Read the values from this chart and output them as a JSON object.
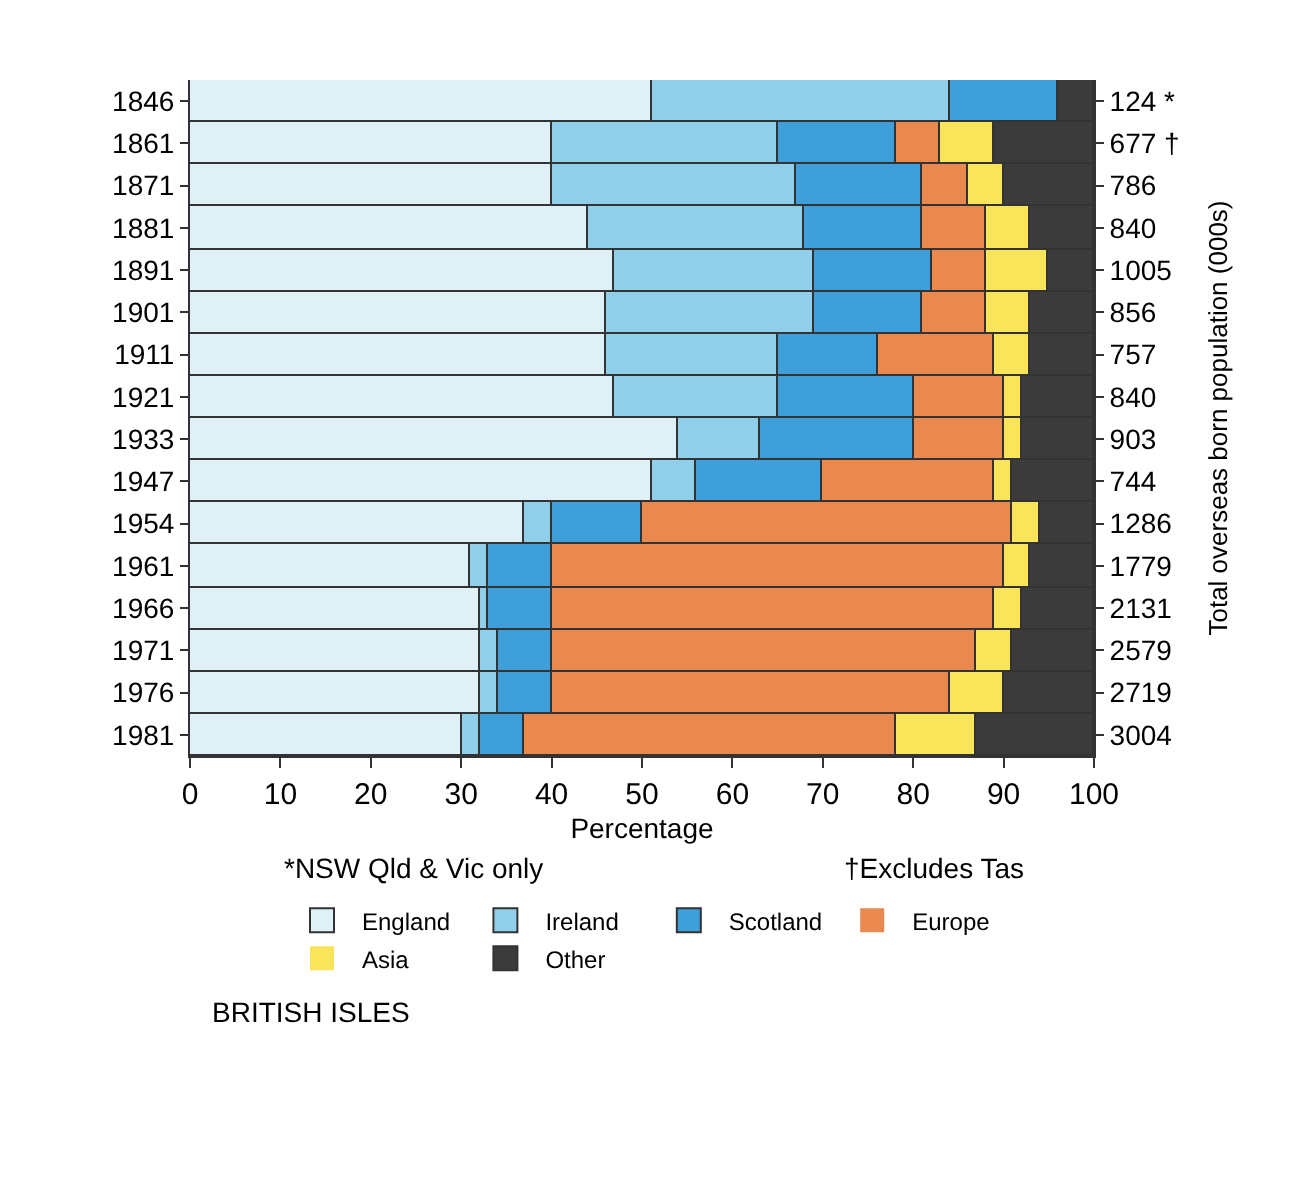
{
  "chart_data": {
    "type": "bar",
    "orientation": "horizontal",
    "stacked": true,
    "categories": [
      "1846",
      "1861",
      "1871",
      "1881",
      "1891",
      "1901",
      "1911",
      "1921",
      "1933",
      "1947",
      "1954",
      "1961",
      "1966",
      "1971",
      "1976",
      "1981"
    ],
    "y2_categories": [
      "124 *",
      "677 †",
      "786",
      "840",
      "1005",
      "856",
      "757",
      "840",
      "903",
      "744",
      "1286",
      "1779",
      "2131",
      "2579",
      "2719",
      "3004"
    ],
    "series": [
      {
        "name": "England",
        "color": "#dff0f7",
        "values": [
          51,
          40,
          40,
          44,
          47,
          46,
          46,
          47,
          54,
          51,
          37,
          31,
          32,
          32,
          32,
          30
        ]
      },
      {
        "name": "Ireland",
        "color": "#8fcfe9",
        "values": [
          33,
          25,
          27,
          24,
          22,
          23,
          19,
          18,
          9,
          5,
          3,
          2,
          1,
          2,
          2,
          2
        ]
      },
      {
        "name": "Scotland",
        "color": "#3f9fdb",
        "values": [
          12,
          13,
          14,
          13,
          13,
          12,
          11,
          15,
          17,
          14,
          10,
          7,
          7,
          6,
          6,
          5
        ]
      },
      {
        "name": "Europe",
        "color": "#e9894f",
        "values": [
          0,
          5,
          5,
          7,
          6,
          7,
          13,
          10,
          10,
          19,
          41,
          50,
          49,
          47,
          44,
          41
        ]
      },
      {
        "name": "Asia",
        "color": "#f9e45a",
        "values": [
          0,
          6,
          4,
          5,
          7,
          5,
          4,
          2,
          2,
          2,
          3,
          3,
          3,
          4,
          6,
          9
        ]
      },
      {
        "name": "Other",
        "color": "#3b3b3b",
        "values": [
          4,
          11,
          10,
          7,
          5,
          7,
          7,
          8,
          8,
          9,
          6,
          7,
          8,
          9,
          10,
          13
        ]
      }
    ],
    "xlabel": "Percentage",
    "y2label": "Total overseas born population (000s)",
    "xlim": [
      0,
      100
    ],
    "xticks": [
      0,
      10,
      20,
      30,
      40,
      50,
      60,
      70,
      80,
      90,
      100
    ],
    "legend": "bottom",
    "annotations": [
      "*NSW Qld & Vic only",
      "†Excludes Tas",
      "BRITISH ISLES"
    ]
  }
}
